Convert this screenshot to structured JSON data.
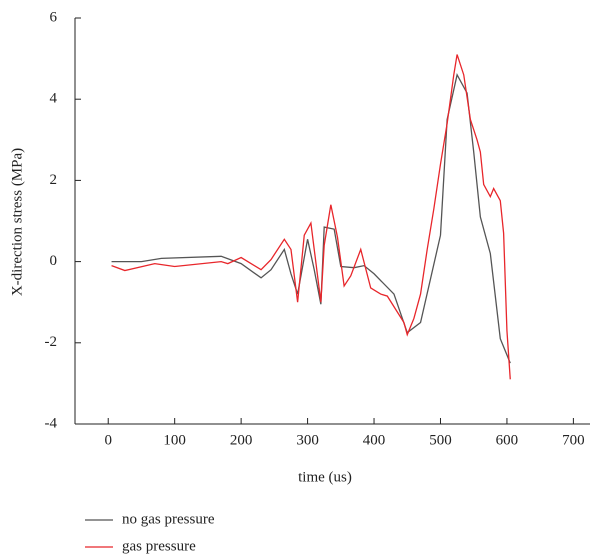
{
  "chart_data": {
    "type": "line",
    "x_label": "time (us)",
    "y_label": "X-direction stress (MPa)",
    "xlim": [
      -50,
      725
    ],
    "xticks": [
      0,
      100,
      200,
      300,
      400,
      500,
      600,
      700
    ],
    "ylim": [
      -4,
      6
    ],
    "yticks": [
      -4,
      -2,
      0,
      2,
      4,
      6
    ],
    "legend": "below",
    "series": [
      {
        "name": "no gas pressure",
        "color": "#555555",
        "x": [
          5,
          50,
          80,
          170,
          200,
          230,
          245,
          265,
          275,
          285,
          300,
          310,
          320,
          325,
          340,
          350,
          370,
          385,
          400,
          430,
          450,
          470,
          500,
          510,
          525,
          540,
          550,
          560,
          575,
          590,
          605
        ],
        "values": [
          0,
          0,
          0.08,
          0.13,
          -0.05,
          -0.4,
          -0.2,
          0.3,
          -0.3,
          -0.8,
          0.55,
          -0.2,
          -1.05,
          0.85,
          0.8,
          -0.12,
          -0.15,
          -0.1,
          -0.3,
          -0.8,
          -1.75,
          -1.5,
          0.65,
          3.5,
          4.6,
          4.15,
          2.7,
          1.1,
          0.2,
          -1.9,
          -2.5
        ]
      },
      {
        "name": "gas pressure",
        "color": "#e8262b",
        "x": [
          5,
          25,
          70,
          100,
          170,
          180,
          200,
          230,
          245,
          265,
          275,
          285,
          295,
          305,
          320,
          325,
          335,
          345,
          355,
          365,
          380,
          395,
          410,
          420,
          445,
          450,
          460,
          470,
          480,
          490,
          500,
          510,
          520,
          525,
          535,
          545,
          555,
          560,
          565,
          575,
          580,
          590,
          595,
          600,
          605
        ],
        "values": [
          -0.1,
          -0.22,
          -0.05,
          -0.12,
          0,
          -0.05,
          0.1,
          -0.2,
          0.05,
          0.55,
          0.3,
          -1.0,
          0.65,
          0.95,
          -1.0,
          0.4,
          1.4,
          0.6,
          -0.6,
          -0.35,
          0.3,
          -0.65,
          -0.8,
          -0.85,
          -1.5,
          -1.8,
          -1.4,
          -0.8,
          0.3,
          1.3,
          2.4,
          3.4,
          4.6,
          5.1,
          4.6,
          3.5,
          3.0,
          2.7,
          1.9,
          1.6,
          1.8,
          1.5,
          0.7,
          -1.7,
          -2.9
        ]
      }
    ]
  }
}
